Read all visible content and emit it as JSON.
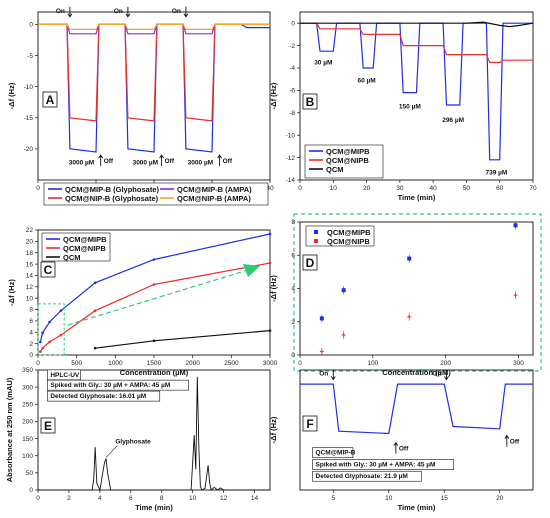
{
  "colors": {
    "blue": "#1f2fe6",
    "red": "#e8302b",
    "black": "#111111",
    "purple": "#8a2be2",
    "orange": "#f5a623",
    "green": "#2ecc71"
  },
  "chart_data": [
    {
      "panel": "A",
      "type": "line",
      "xlabel": "Time (min)",
      "ylabel": "-Δf (Hz)",
      "xlim": [
        0,
        40
      ],
      "ylim": [
        -25,
        2
      ],
      "xticks": [
        0,
        10,
        20,
        30,
        40
      ],
      "yticks": [
        0,
        -5,
        -10,
        -15,
        -20
      ],
      "legend_position": "bottom",
      "series": [
        {
          "name": "QCM@MIP-B (Glyphosate)",
          "color": "#1f2fe6",
          "x": [
            0,
            5,
            5.5,
            10,
            10.5,
            15,
            15.5,
            20,
            20.5,
            25,
            25.5,
            30,
            30.5,
            35,
            36,
            40
          ],
          "y": [
            0,
            0,
            -20,
            -20.5,
            0,
            0,
            -20,
            -20.5,
            0,
            0,
            -20,
            -20.5,
            0,
            0,
            -0.5,
            -0.5
          ]
        },
        {
          "name": "QCM@NIP-B (Glyphosate)",
          "color": "#e8302b",
          "x": [
            0,
            5,
            5.5,
            10,
            10.5,
            15,
            15.5,
            20,
            20.5,
            25,
            25.5,
            30,
            30.5,
            35,
            40
          ],
          "y": [
            0,
            0,
            -15,
            -15.5,
            0,
            0,
            -15,
            -15.5,
            0,
            0,
            -15,
            -15.5,
            0,
            0,
            0
          ]
        },
        {
          "name": "QCM@MIP-B (AMPA)",
          "color": "#8a2be2",
          "x": [
            0,
            5,
            5.5,
            10,
            10.5,
            15,
            15.5,
            20,
            20.5,
            25,
            25.5,
            30,
            30.5,
            35,
            40
          ],
          "y": [
            0,
            0,
            -1.5,
            -1.5,
            0,
            0,
            -1.5,
            -1.5,
            0,
            0,
            -1.5,
            -1.5,
            0,
            0,
            0
          ]
        },
        {
          "name": "QCM@NIP-B (AMPA)",
          "color": "#f5a623",
          "x": [
            0,
            5,
            5.5,
            10,
            10.5,
            15,
            15.5,
            20,
            20.5,
            25,
            25.5,
            30,
            30.5,
            35,
            40
          ],
          "y": [
            0,
            0,
            -0.8,
            -0.8,
            0,
            0,
            -0.8,
            -0.8,
            0,
            0,
            -0.8,
            -0.8,
            0,
            0,
            0
          ]
        }
      ],
      "annotations": [
        {
          "text": "On",
          "x": 5.5,
          "y": 2.2
        },
        {
          "text": "On",
          "x": 15.5,
          "y": 2.2
        },
        {
          "text": "On",
          "x": 25.5,
          "y": 2.2
        },
        {
          "text": "3000 µM",
          "x": 7.5,
          "y": -22.5
        },
        {
          "text": "3000 µM",
          "x": 18.5,
          "y": -22.5
        },
        {
          "text": "3000 µM",
          "x": 28,
          "y": -22.5
        },
        {
          "text": "Off",
          "x": 11.5,
          "y": -21.8
        },
        {
          "text": "Off",
          "x": 22,
          "y": -21.8
        },
        {
          "text": "Off",
          "x": 32,
          "y": -21.8
        }
      ]
    },
    {
      "panel": "B",
      "type": "line",
      "xlabel": "Time (min)",
      "ylabel": "-Δf (Hz)",
      "xlim": [
        0,
        70
      ],
      "ylim": [
        -14,
        1
      ],
      "xticks": [
        0,
        10,
        20,
        30,
        40,
        50,
        60,
        70
      ],
      "yticks": [
        0,
        -2,
        -4,
        -6,
        -8,
        -10,
        -12,
        -14
      ],
      "legend_position": "bottom-left",
      "series": [
        {
          "name": "QCM@MIPB",
          "color": "#1f2fe6",
          "x": [
            0,
            5,
            6,
            10,
            11,
            18,
            19,
            22,
            23,
            30,
            31,
            35,
            36,
            43,
            44,
            48,
            49,
            56,
            57,
            60,
            61,
            65,
            66,
            70
          ],
          "y": [
            0,
            0,
            -2.5,
            -2.5,
            0,
            0,
            -4,
            -4,
            0,
            0,
            -6.2,
            -6.2,
            0,
            0,
            -7.3,
            -7.3,
            0,
            0,
            -12.2,
            -12.2,
            0,
            0,
            0,
            0
          ]
        },
        {
          "name": "QCM@NIPB",
          "color": "#e8302b",
          "x": [
            0,
            5,
            6,
            10,
            11,
            18,
            19,
            22,
            23,
            30,
            31,
            35,
            36,
            43,
            44,
            48,
            49,
            56,
            57,
            60,
            61,
            70
          ],
          "y": [
            0,
            0,
            -0.5,
            -0.5,
            -0.5,
            -0.5,
            -1.0,
            -1.0,
            -1.0,
            -1.0,
            -2.0,
            -2.0,
            -2.0,
            -2.0,
            -2.8,
            -2.8,
            -2.8,
            -2.8,
            -3.5,
            -3.5,
            -3.3,
            -3.3
          ]
        },
        {
          "name": "QCM",
          "color": "#111111",
          "x": [
            0,
            40,
            50,
            55,
            60,
            63,
            66,
            70
          ],
          "y": [
            0,
            0,
            0,
            0.1,
            -0.2,
            -0.3,
            -0.2,
            0
          ]
        }
      ],
      "annotations": [
        {
          "text": "30 µM",
          "x": 7,
          "y": -3.7
        },
        {
          "text": "60 µM",
          "x": 20,
          "y": -5.3
        },
        {
          "text": "150 µM",
          "x": 33,
          "y": -7.6
        },
        {
          "text": "296 µM",
          "x": 46,
          "y": -8.8
        },
        {
          "text": "739 µM",
          "x": 59,
          "y": -13.5
        }
      ]
    },
    {
      "panel": "C",
      "type": "line",
      "xlabel": "Concentration (µM)",
      "ylabel": "-Δf (Hz)",
      "xlim": [
        0,
        3000
      ],
      "ylim": [
        0,
        22
      ],
      "xticks": [
        0,
        500,
        1000,
        1500,
        2000,
        2500,
        3000
      ],
      "yticks": [
        0,
        2,
        4,
        6,
        8,
        10,
        12,
        14,
        16,
        18,
        20,
        22
      ],
      "legend_position": "top-left",
      "series": [
        {
          "name": "QCM@MIPB",
          "color": "#1f2fe6",
          "x": [
            30,
            60,
            150,
            296,
            739,
            1500,
            3000
          ],
          "y": [
            2.3,
            3.9,
            5.8,
            7.8,
            12.7,
            16.8,
            21.3
          ]
        },
        {
          "name": "QCM@NIPB",
          "color": "#e8302b",
          "x": [
            30,
            60,
            150,
            296,
            739,
            1500,
            3000
          ],
          "y": [
            0.6,
            1.2,
            2.3,
            3.5,
            7.8,
            12.4,
            16.2
          ]
        },
        {
          "name": "QCM",
          "color": "#111111",
          "x": [
            739,
            1500,
            3000
          ],
          "y": [
            1.2,
            2.5,
            4.3
          ]
        }
      ]
    },
    {
      "panel": "D",
      "type": "scatter",
      "xlabel": "Concentration (µM)",
      "ylabel": "-Δf (Hz)",
      "xlim": [
        0,
        320
      ],
      "ylim": [
        0,
        8
      ],
      "xticks": [
        0,
        100,
        200,
        300
      ],
      "yticks": [
        0,
        2,
        4,
        6,
        8
      ],
      "legend_position": "top-left",
      "series": [
        {
          "name": "QCM@MIPB",
          "color": "#1f2fe6",
          "x": [
            30,
            60,
            150,
            296
          ],
          "y": [
            2.2,
            3.9,
            5.8,
            7.8
          ]
        },
        {
          "name": "QCM@NIPB",
          "color": "#e8302b",
          "x": [
            30,
            60,
            150,
            296
          ],
          "y": [
            0.2,
            1.2,
            2.3,
            3.6
          ]
        }
      ]
    },
    {
      "panel": "E",
      "type": "line",
      "xlabel": "Time (min)",
      "ylabel": "Absorbance at 250 nm (mAU)",
      "xlim": [
        0,
        15
      ],
      "ylim": [
        0,
        350
      ],
      "xticks": [
        0,
        2,
        4,
        6,
        8,
        10,
        12,
        14
      ],
      "yticks": [
        0,
        50,
        100,
        150,
        200,
        250,
        300,
        350
      ],
      "series": [
        {
          "name": "HPLC-UV",
          "color": "#111111",
          "x": [
            0,
            3.5,
            3.6,
            3.7,
            3.8,
            4.0,
            4.3,
            4.4,
            4.5,
            4.7,
            5,
            9.9,
            10.1,
            10.2,
            10.3,
            10.4,
            10.5,
            10.6,
            10.8,
            11.0,
            11.1,
            11.2,
            11.4,
            11.6,
            11.8,
            12,
            15
          ],
          "y": [
            0,
            0,
            30,
            125,
            20,
            0,
            80,
            92,
            50,
            0,
            0,
            0,
            160,
            60,
            330,
            120,
            10,
            0,
            5,
            72,
            20,
            0,
            8,
            0,
            6,
            0,
            0
          ]
        }
      ],
      "annotations": [
        {
          "text": "Glyphosate",
          "x": 5.0,
          "y": 135
        },
        {
          "text": "HPLC-UV",
          "x": 0.8,
          "y": 330
        },
        {
          "text": "Spiked with Gly.: 30 µM + AMPA: 45 µM",
          "x": 0.8,
          "y": 300
        },
        {
          "text": "Detected Glyphosate: 16.01 µM",
          "x": 0.8,
          "y": 268
        }
      ]
    },
    {
      "panel": "F",
      "type": "line",
      "xlabel": "Time (min)",
      "ylabel": "-Δf (Hz)",
      "xlim": [
        2,
        23
      ],
      "ylim": [
        -4.5,
        0.6
      ],
      "xticks": [
        5,
        10,
        15,
        20
      ],
      "yticks": [],
      "series": [
        {
          "name": "QCM@MIP-B",
          "color": "#1f2fe6",
          "x": [
            2,
            5,
            5.5,
            10,
            10.8,
            15,
            15.8,
            20,
            20.5,
            23
          ],
          "y": [
            0,
            0,
            -2.0,
            -2.1,
            0,
            0,
            -1.8,
            -1.9,
            0,
            0
          ]
        }
      ],
      "annotations": [
        {
          "text": "On",
          "x": 5,
          "y": 0.45
        },
        {
          "text": "On",
          "x": 15.2,
          "y": 0.45
        },
        {
          "text": "Off",
          "x": 11,
          "y": -2.7
        },
        {
          "text": "Off",
          "x": 21,
          "y": -2.4
        },
        {
          "text": "QCM@MIP-B",
          "x": 3.4,
          "y": -3.0
        },
        {
          "text": "Spiked with Gly.: 30 µM + AMPA: 45 µM",
          "x": 3.4,
          "y": -3.5
        },
        {
          "text": "Detected Glyphosate: 21.9 µM",
          "x": 3.4,
          "y": -4.0
        }
      ]
    }
  ],
  "panels": {
    "A": {
      "label": "A"
    },
    "B": {
      "label": "B"
    },
    "C": {
      "label": "C"
    },
    "D": {
      "label": "D"
    },
    "E": {
      "label": "E"
    },
    "F": {
      "label": "F"
    }
  }
}
